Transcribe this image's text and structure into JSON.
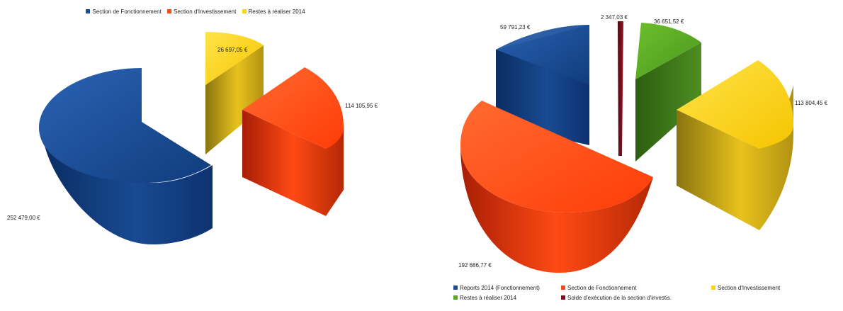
{
  "chart_data": [
    {
      "type": "pie",
      "variant": "3d-exploded",
      "title": "",
      "legend_position": "top",
      "series": [
        {
          "name": "Section de Fonctionnement",
          "value": 252479.0,
          "label": "252 479,00 €",
          "color": "#1a4d94"
        },
        {
          "name": "Section d'Investissement",
          "value": 114105.95,
          "label": "114 105,95 €",
          "color": "#ff4a14"
        },
        {
          "name": "Restes à réaliser 2014",
          "value": 26697.05,
          "label": "26 697,05 €",
          "color": "#ffd21a"
        }
      ]
    },
    {
      "type": "pie",
      "variant": "3d-exploded",
      "title": "",
      "legend_position": "bottom",
      "series": [
        {
          "name": "Reports 2014 (Fonctionnement)",
          "value": 59791.23,
          "label": "59 791,23 €",
          "color": "#1a4d94"
        },
        {
          "name": "Section de Fonctionnement",
          "value": 192686.77,
          "label": "192 686,77 €",
          "color": "#ff4a14"
        },
        {
          "name": "Section d'Investissement",
          "value": 113804.45,
          "label": "113 804,45 €",
          "color": "#ffd21a"
        },
        {
          "name": "Restes à réaliser 2014",
          "value": 36651.52,
          "label": "36 651,52 €",
          "color": "#57a626"
        },
        {
          "name": "Solde d'exécution de la section d'investis.",
          "value": 2347.03,
          "label": "2 347,03 €",
          "color": "#7a1020"
        }
      ]
    }
  ]
}
